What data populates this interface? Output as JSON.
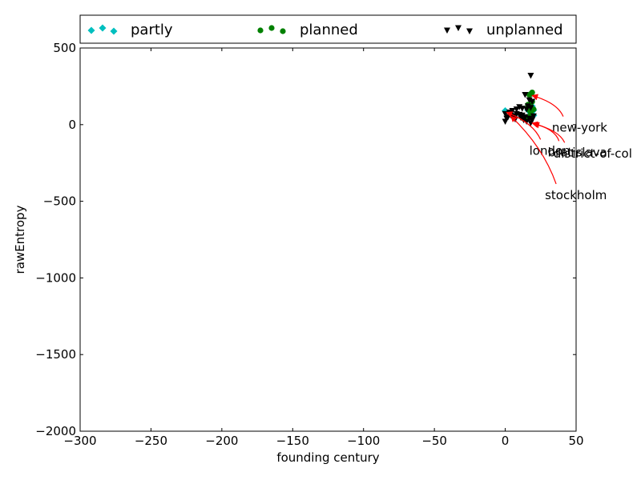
{
  "chart_data": {
    "type": "scatter",
    "xlabel": "founding century",
    "ylabel": "rawEntropy",
    "xlim": [
      -300,
      50
    ],
    "ylim": [
      -2000,
      500
    ],
    "x_ticks": [
      -300,
      -250,
      -200,
      -150,
      -100,
      -50,
      0,
      50
    ],
    "y_ticks": [
      -2000,
      -1500,
      -1000,
      -500,
      0,
      500
    ],
    "x_tick_labels": [
      "−300",
      "−250",
      "−200",
      "−150",
      "−100",
      "−50",
      "0",
      "50"
    ],
    "y_tick_labels": [
      "−2000",
      "−1500",
      "−1000",
      "−500",
      "0",
      "500"
    ],
    "grid": false,
    "legend_position": "top",
    "series": [
      {
        "name": "partly",
        "marker": "diamond",
        "color": "#00bfbf",
        "points": [
          [
            0,
            90
          ],
          [
            16,
            95
          ],
          [
            17,
            110
          ],
          [
            18,
            75
          ],
          [
            19,
            120
          ],
          [
            19,
            85
          ],
          [
            20,
            60
          ],
          [
            18,
            100
          ],
          [
            17,
            130
          ],
          [
            19,
            70
          ],
          [
            15,
            40
          ],
          [
            20,
            95
          ]
        ]
      },
      {
        "name": "planned",
        "marker": "circle",
        "color": "#008000",
        "points": [
          [
            17,
            195
          ],
          [
            18,
            200
          ],
          [
            19,
            210
          ],
          [
            16,
            130
          ],
          [
            18,
            120
          ],
          [
            19,
            150
          ],
          [
            17,
            95
          ],
          [
            20,
            100
          ],
          [
            18,
            80
          ],
          [
            16,
            50
          ],
          [
            19,
            60
          ],
          [
            13,
            40
          ]
        ]
      },
      {
        "name": "unplanned",
        "marker": "triangle-down",
        "color": "#000000",
        "points": [
          [
            18,
            320
          ],
          [
            14,
            195
          ],
          [
            17,
            160
          ],
          [
            19,
            150
          ],
          [
            16,
            120
          ],
          [
            18,
            110
          ],
          [
            15,
            100
          ],
          [
            12,
            105
          ],
          [
            10,
            115
          ],
          [
            8,
            100
          ],
          [
            5,
            90
          ],
          [
            3,
            80
          ],
          [
            0,
            70
          ],
          [
            1,
            40
          ],
          [
            0,
            20
          ],
          [
            2,
            50
          ],
          [
            4,
            60
          ],
          [
            6,
            55
          ],
          [
            8,
            70
          ],
          [
            10,
            65
          ],
          [
            12,
            60
          ],
          [
            14,
            50
          ],
          [
            13,
            30
          ],
          [
            15,
            20
          ],
          [
            17,
            40
          ],
          [
            18,
            10
          ],
          [
            19,
            30
          ],
          [
            20,
            55
          ],
          [
            11,
            45
          ],
          [
            7,
            35
          ]
        ]
      }
    ],
    "annotations": [
      {
        "text": "new-york",
        "point": [
          19,
          190
        ],
        "text_pos": [
          33,
          -20
        ]
      },
      {
        "text": "london",
        "point": [
          1,
          80
        ],
        "text_pos": [
          17,
          -170
        ]
      },
      {
        "text": "bratislava",
        "point": [
          19,
          10
        ],
        "text_pos": [
          30,
          -180
        ]
      },
      {
        "text": "district-of-col",
        "point": [
          20,
          5
        ],
        "text_pos": [
          34,
          -190
        ]
      },
      {
        "text": "stockholm",
        "point": [
          4,
          55
        ],
        "text_pos": [
          28,
          -460
        ]
      }
    ]
  }
}
